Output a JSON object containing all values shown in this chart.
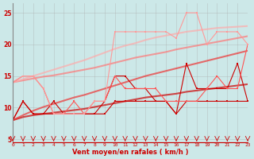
{
  "title": "",
  "xlabel": "Vent moyen/en rafales ( km/h )",
  "xlim": [
    0,
    23
  ],
  "ylim": [
    4.5,
    26.5
  ],
  "yticks": [
    5,
    10,
    15,
    20,
    25
  ],
  "xticks": [
    0,
    1,
    2,
    3,
    4,
    5,
    6,
    7,
    8,
    9,
    10,
    11,
    12,
    13,
    14,
    15,
    16,
    17,
    18,
    19,
    20,
    21,
    22,
    23
  ],
  "bg_color": "#cce8e8",
  "grid_color": "#aaaaaa",
  "lines_dotted": [
    {
      "x": [
        0,
        1,
        2,
        3,
        4,
        5,
        6,
        7,
        8,
        9,
        10,
        11,
        12,
        13,
        14,
        15,
        16,
        17,
        18,
        19,
        20,
        21,
        22,
        23
      ],
      "y": [
        8,
        11,
        9,
        9,
        9,
        9,
        9,
        9,
        9,
        9,
        11,
        11,
        11,
        11,
        11,
        11,
        9,
        11,
        11,
        11,
        11,
        11,
        11,
        11
      ],
      "color": "#cc0000",
      "lw": 0.8,
      "ms": 2.0
    },
    {
      "x": [
        0,
        1,
        2,
        3,
        4,
        5,
        6,
        7,
        8,
        9,
        10,
        11,
        12,
        13,
        14,
        15,
        16,
        17,
        18,
        19,
        20,
        21,
        22,
        23
      ],
      "y": [
        8,
        11,
        9,
        9,
        11,
        9,
        9,
        9,
        9,
        11,
        15,
        15,
        13,
        13,
        11,
        11,
        9,
        17,
        13,
        13,
        13,
        13,
        17,
        11
      ],
      "color": "#cc0000",
      "lw": 0.8,
      "ms": 2.0
    },
    {
      "x": [
        0,
        1,
        2,
        3,
        4,
        5,
        6,
        7,
        8,
        9,
        10,
        11,
        12,
        13,
        14,
        15,
        16,
        17,
        18,
        19,
        20,
        21,
        22,
        23
      ],
      "y": [
        14,
        15,
        15,
        13,
        9,
        9,
        11,
        9,
        11,
        11,
        15,
        13,
        13,
        13,
        13,
        11,
        11,
        11,
        11,
        13,
        15,
        13,
        13,
        20
      ],
      "color": "#ff5555",
      "lw": 0.8,
      "ms": 2.0
    },
    {
      "x": [
        0,
        1,
        2,
        3,
        4,
        5,
        6,
        7,
        8,
        9,
        10,
        11,
        12,
        13,
        14,
        15,
        16,
        17,
        18,
        19,
        20,
        21,
        22,
        23
      ],
      "y": [
        14,
        15,
        15,
        13,
        9,
        9,
        9,
        9,
        11,
        11,
        22,
        22,
        22,
        22,
        22,
        22,
        21,
        25,
        25,
        20,
        22,
        22,
        22,
        20
      ],
      "color": "#ff9999",
      "lw": 0.8,
      "ms": 2.0
    }
  ],
  "lines_smooth": [
    {
      "x": [
        0,
        1,
        2,
        3,
        4,
        5,
        6,
        7,
        8,
        9,
        10,
        11,
        12,
        13,
        14,
        15,
        16,
        17,
        18,
        19,
        20,
        21,
        22,
        23
      ],
      "y": [
        8,
        8.5,
        8.8,
        9.0,
        9.2,
        9.4,
        9.6,
        9.8,
        10.1,
        10.4,
        10.7,
        11.0,
        11.3,
        11.6,
        11.8,
        12.0,
        12.2,
        12.5,
        12.7,
        12.9,
        13.1,
        13.3,
        13.5,
        13.7
      ],
      "color": "#cc0000",
      "lw": 1.5
    },
    {
      "x": [
        0,
        1,
        2,
        3,
        4,
        5,
        6,
        7,
        8,
        9,
        10,
        11,
        12,
        13,
        14,
        15,
        16,
        17,
        18,
        19,
        20,
        21,
        22,
        23
      ],
      "y": [
        8,
        8.8,
        9.5,
        10.1,
        10.6,
        11.1,
        11.6,
        12.0,
        12.5,
        13.0,
        13.5,
        14.0,
        14.5,
        15.0,
        15.4,
        15.8,
        16.2,
        16.6,
        17.0,
        17.4,
        17.8,
        18.2,
        18.6,
        19.0
      ],
      "color": "#ee3333",
      "lw": 1.5
    },
    {
      "x": [
        0,
        1,
        2,
        3,
        4,
        5,
        6,
        7,
        8,
        9,
        10,
        11,
        12,
        13,
        14,
        15,
        16,
        17,
        18,
        19,
        20,
        21,
        22,
        23
      ],
      "y": [
        14,
        14.3,
        14.6,
        14.9,
        15.1,
        15.4,
        15.7,
        16.0,
        16.3,
        16.7,
        17.1,
        17.5,
        17.9,
        18.2,
        18.5,
        18.8,
        19.2,
        19.5,
        19.8,
        20.1,
        20.4,
        20.7,
        21.0,
        21.3
      ],
      "color": "#ff7777",
      "lw": 1.5
    },
    {
      "x": [
        0,
        1,
        2,
        3,
        4,
        5,
        6,
        7,
        8,
        9,
        10,
        11,
        12,
        13,
        14,
        15,
        16,
        17,
        18,
        19,
        20,
        21,
        22,
        23
      ],
      "y": [
        14,
        14.5,
        15.0,
        15.5,
        16.0,
        16.5,
        17.0,
        17.5,
        18.1,
        18.7,
        19.3,
        19.8,
        20.2,
        20.7,
        21.1,
        21.4,
        21.7,
        22.0,
        22.2,
        22.4,
        22.6,
        22.7,
        22.8,
        22.9
      ],
      "color": "#ffaaaa",
      "lw": 1.5
    }
  ]
}
